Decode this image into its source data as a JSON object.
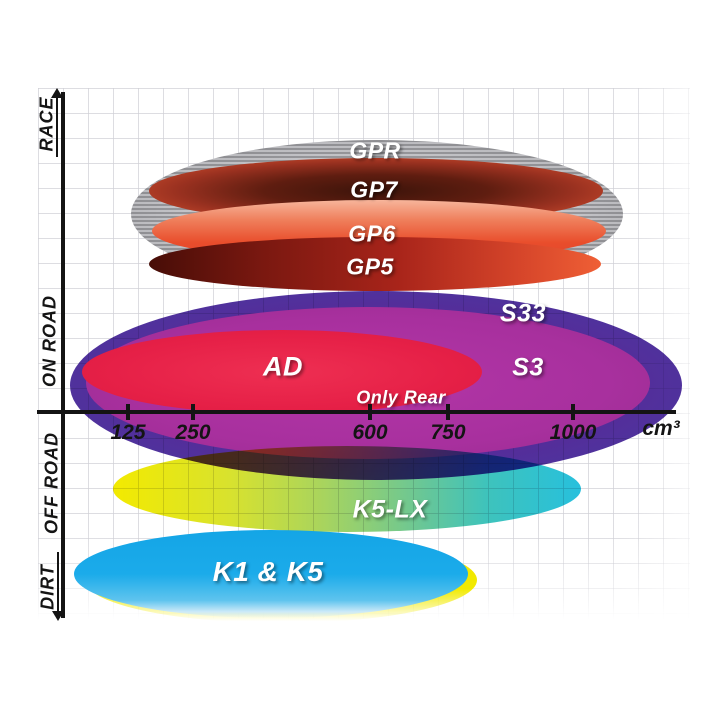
{
  "y_axis": {
    "bands": [
      {
        "label": "RACE",
        "arrow": "up"
      },
      {
        "label": "ON ROAD",
        "arrow": "none"
      },
      {
        "label": "OFF ROAD",
        "arrow": "none"
      },
      {
        "label": "DIRT",
        "arrow": "down"
      }
    ]
  },
  "x_axis": {
    "unit_label": "cm³",
    "ticks": [
      {
        "label": "125",
        "value": 125
      },
      {
        "label": "250",
        "value": 250
      },
      {
        "label": "600",
        "value": 600
      },
      {
        "label": "750",
        "value": 750
      },
      {
        "label": "1000",
        "value": 1000
      }
    ]
  },
  "products": [
    {
      "id": "gpr",
      "label": "GPR",
      "color": "#aeaeb2",
      "style": "striped-silver"
    },
    {
      "id": "gp7",
      "label": "GP7",
      "color": "#6b2012",
      "style": "dark-red-radial"
    },
    {
      "id": "gp6",
      "label": "GP6",
      "color": "#e94e2c",
      "style": "orange-red"
    },
    {
      "id": "gp5",
      "label": "GP5",
      "color": "#a8241a",
      "style": "maroon-to-red"
    },
    {
      "id": "s33",
      "label": "S33",
      "color": "#552c99",
      "style": "indigo-purple"
    },
    {
      "id": "s3",
      "label": "S3",
      "color": "#a8309e",
      "style": "magenta-purple"
    },
    {
      "id": "ad",
      "label": "AD",
      "color": "#e62047",
      "style": "crimson",
      "note": "Only Rear"
    },
    {
      "id": "k5lx",
      "label": "K5-LX",
      "color_start": "#f3ea00",
      "color_end": "#27c0dd",
      "style": "yellow-to-cyan"
    },
    {
      "id": "k1k5",
      "label": "K1 & K5",
      "color": "#17a8e8",
      "outline_color": "#f2e800",
      "style": "cyan-blue"
    }
  ],
  "annotations": {
    "only_rear": "Only Rear"
  },
  "chart_data": {
    "type": "area",
    "subtype": "ellipse-range-map",
    "title": "",
    "xlabel": "cm³",
    "ylabel": "",
    "x_ticks": [
      125,
      250,
      600,
      750,
      1000
    ],
    "x_range_estimate": [
      0,
      1250
    ],
    "y_bands": [
      "RACE",
      "ON ROAD",
      "OFF ROAD",
      "DIRT"
    ],
    "grid": true,
    "series": [
      {
        "name": "GPR",
        "band": "RACE",
        "cc_range": [
          130,
          1075
        ]
      },
      {
        "name": "GP7",
        "band": "RACE",
        "cc_range": [
          165,
          1040
        ]
      },
      {
        "name": "GP6",
        "band": "RACE",
        "cc_range": [
          170,
          1045
        ]
      },
      {
        "name": "GP5",
        "band": "RACE / ON ROAD",
        "cc_range": [
          165,
          1035
        ]
      },
      {
        "name": "S33",
        "band": "ON ROAD",
        "cc_range": [
          15,
          1190
        ]
      },
      {
        "name": "S3",
        "band": "ON ROAD",
        "cc_range": [
          45,
          1130
        ]
      },
      {
        "name": "AD",
        "band": "ON ROAD",
        "cc_range": [
          35,
          805
        ],
        "note": "Only Rear"
      },
      {
        "name": "K5-LX",
        "band": "OFF ROAD",
        "cc_range": [
          95,
          995
        ]
      },
      {
        "name": "K1 & K5",
        "band": "DIRT",
        "cc_range": [
          20,
          780
        ]
      }
    ]
  }
}
